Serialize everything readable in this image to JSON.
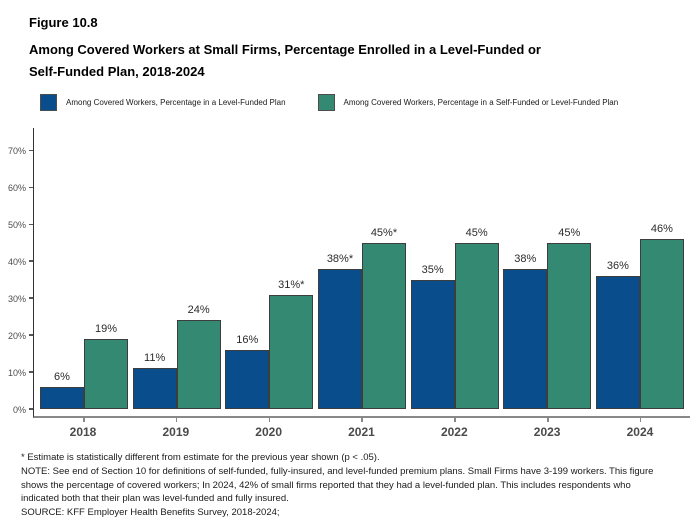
{
  "header": {
    "figure_label": "Figure 10.8",
    "title_lines": [
      "Among Covered Workers at Small Firms, Percentage Enrolled in a Level-Funded or",
      "Self-Funded Plan, 2018-2024"
    ]
  },
  "chart_data": {
    "type": "bar",
    "title": "Figure 10.8: Among Covered Workers at Small Firms, Percentage Enrolled in a Level-Funded or Self-Funded Plan, 2018-2024",
    "categories": [
      "2018",
      "2019",
      "2020",
      "2021",
      "2022",
      "2023",
      "2024"
    ],
    "series": [
      {
        "name": "Among Covered Workers, Percentage in a Level-Funded Plan",
        "key": "level-funded",
        "color": "#0A4D8C",
        "values": [
          6,
          11,
          16,
          38,
          35,
          38,
          36
        ],
        "labels": [
          "6%",
          "11%",
          "16%",
          "38%*",
          "35%",
          "38%",
          "36%"
        ]
      },
      {
        "name": "Among Covered Workers, Percentage in a Self-Funded or Level-Funded Plan",
        "key": "self-or-level-funded",
        "color": "#348973",
        "values": [
          19,
          24,
          31,
          45,
          45,
          45,
          46
        ],
        "labels": [
          "19%",
          "24%",
          "31%*",
          "45%*",
          "45%",
          "45%",
          "46%"
        ]
      }
    ],
    "xlabel": "",
    "ylabel": "",
    "y_ticks": [
      0,
      10,
      20,
      30,
      40,
      50,
      60,
      70
    ],
    "y_tick_labels": [
      "0%",
      "10%",
      "20%",
      "30%",
      "40%",
      "50%",
      "60%",
      "70%"
    ],
    "ylim": [
      0,
      77
    ],
    "grid": false,
    "legend_position": "top",
    "bar_border_color": "#3d3d3d"
  },
  "footer": {
    "lines": [
      "* Estimate is statistically different from estimate for the previous year shown (p < .05).",
      "NOTE: See end of Section 10 for definitions of self-funded, fully-insured, and level-funded premium plans. Small Firms have 3-199 workers. This figure shows the percentage of covered workers; In 2024, 42% of small firms reported that they had a level-funded plan. This includes respondents who indicated both that their plan was level-funded and fully insured.",
      "SOURCE: KFF Employer Health Benefits Survey, 2018-2024;"
    ]
  }
}
